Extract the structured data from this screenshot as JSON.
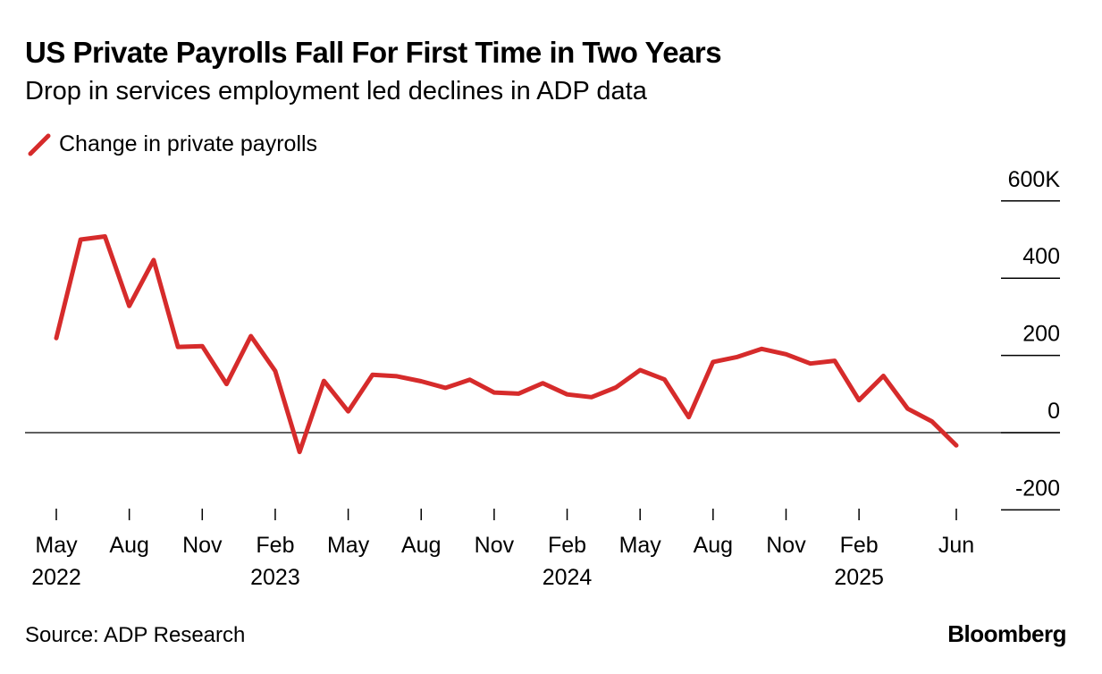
{
  "header": {
    "title": "US Private Payrolls Fall For First Time in Two Years",
    "subtitle": "Drop in services employment led declines in ADP data"
  },
  "legend": {
    "label": "Change in private payrolls",
    "color": "#d62b2b"
  },
  "footer": {
    "source": "Source: ADP Research",
    "brand": "Bloomberg"
  },
  "chart_data": {
    "type": "line",
    "title": "US Private Payrolls Fall For First Time in Two Years",
    "subtitle": "Drop in services employment led declines in ADP data",
    "xlabel": "",
    "ylabel": "",
    "ylim": [
      -200,
      600
    ],
    "y_ticks": [
      {
        "value": 600,
        "label": "600K"
      },
      {
        "value": 400,
        "label": "400"
      },
      {
        "value": 200,
        "label": "200"
      },
      {
        "value": 0,
        "label": "0"
      },
      {
        "value": -200,
        "label": "-200"
      }
    ],
    "x_ticks": [
      {
        "index": 0,
        "label": "May",
        "year": "2022"
      },
      {
        "index": 3,
        "label": "Aug",
        "year": ""
      },
      {
        "index": 6,
        "label": "Nov",
        "year": ""
      },
      {
        "index": 9,
        "label": "Feb",
        "year": "2023"
      },
      {
        "index": 12,
        "label": "May",
        "year": ""
      },
      {
        "index": 15,
        "label": "Aug",
        "year": ""
      },
      {
        "index": 18,
        "label": "Nov",
        "year": ""
      },
      {
        "index": 21,
        "label": "Feb",
        "year": "2024"
      },
      {
        "index": 24,
        "label": "May",
        "year": ""
      },
      {
        "index": 27,
        "label": "Aug",
        "year": ""
      },
      {
        "index": 30,
        "label": "Nov",
        "year": ""
      },
      {
        "index": 33,
        "label": "Feb",
        "year": "2025"
      },
      {
        "index": 37,
        "label": "Jun",
        "year": ""
      }
    ],
    "grid": false,
    "legend_position": "top-left",
    "series": [
      {
        "name": "Change in private payrolls",
        "color": "#d62b2b",
        "x": [
          "2022-05",
          "2022-06",
          "2022-07",
          "2022-08",
          "2022-09",
          "2022-10",
          "2022-11",
          "2022-12",
          "2023-01",
          "2023-02",
          "2023-03",
          "2023-04",
          "2023-05",
          "2023-06",
          "2023-07",
          "2023-08",
          "2023-09",
          "2023-10",
          "2023-11",
          "2023-12",
          "2024-01",
          "2024-02",
          "2024-03",
          "2024-04",
          "2024-05",
          "2024-06",
          "2024-07",
          "2024-08",
          "2024-09",
          "2024-10",
          "2024-11",
          "2024-12",
          "2025-01",
          "2025-02",
          "2025-03",
          "2025-04",
          "2025-05",
          "2025-06"
        ],
        "values": [
          245,
          500,
          508,
          328,
          447,
          222,
          224,
          126,
          250,
          160,
          -50,
          134,
          55,
          150,
          146,
          133,
          116,
          137,
          104,
          101,
          128,
          99,
          92,
          117,
          162,
          138,
          40,
          183,
          196,
          217,
          203,
          179,
          186,
          84,
          147,
          62,
          29,
          -33
        ]
      }
    ]
  }
}
